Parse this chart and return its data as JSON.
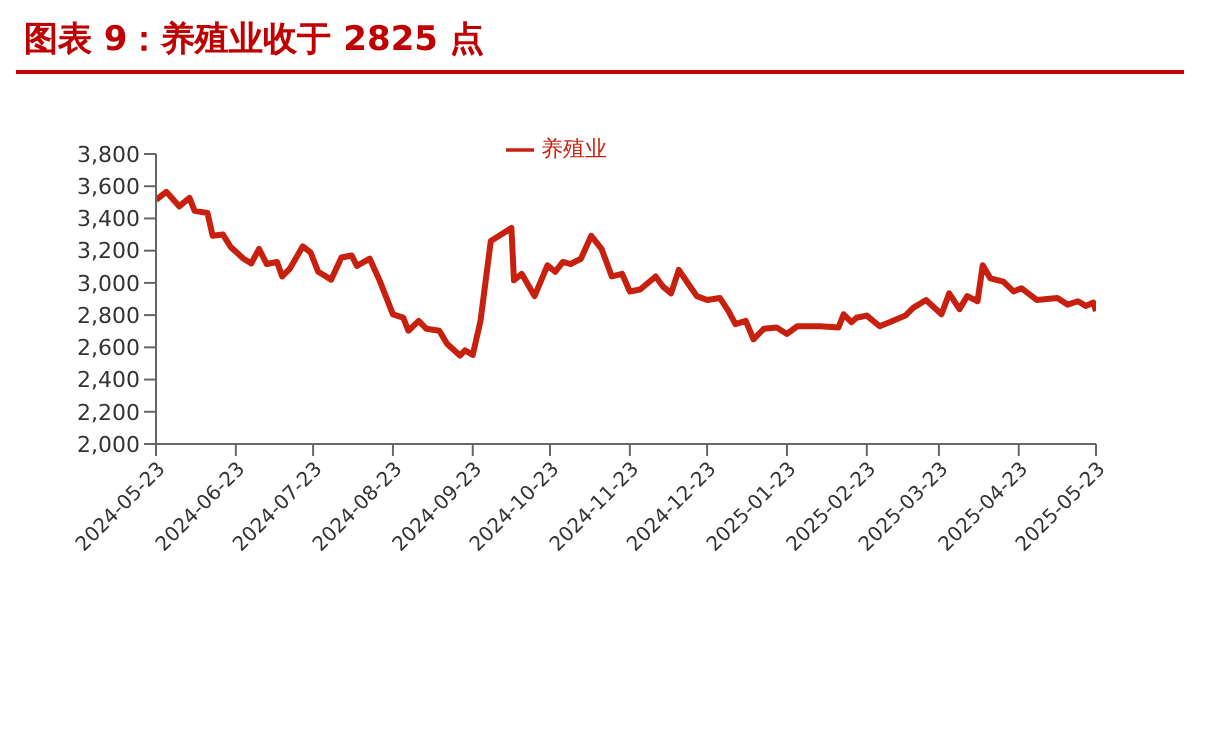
{
  "chart_data": {
    "type": "line",
    "title": "图表 9：养殖业收于 2825 点",
    "legend": "top",
    "grid": false,
    "marker": "none",
    "line_style": "solid",
    "xlim": [
      "2024-05-23",
      "2025-05-23"
    ],
    "xticks": [
      "2024-05-23",
      "2024-06-23",
      "2024-07-23",
      "2024-08-23",
      "2024-09-23",
      "2024-10-23",
      "2024-11-23",
      "2024-12-23",
      "2025-01-23",
      "2025-02-23",
      "2025-03-23",
      "2025-04-23",
      "2025-05-23"
    ],
    "ylim": [
      2000,
      3800
    ],
    "yticks": [
      {
        "value": 2000,
        "label": "2,000"
      },
      {
        "value": 2200,
        "label": "2,200"
      },
      {
        "value": 2400,
        "label": "2,400"
      },
      {
        "value": 2600,
        "label": "2,600"
      },
      {
        "value": 2800,
        "label": "2,800"
      },
      {
        "value": 3000,
        "label": "3,000"
      },
      {
        "value": 3200,
        "label": "3,200"
      },
      {
        "value": 3400,
        "label": "3,400"
      },
      {
        "value": 3600,
        "label": "3,600"
      },
      {
        "value": 3800,
        "label": "3,800"
      }
    ],
    "x": [
      "2024-05-23",
      "2024-05-27",
      "2024-06-01",
      "2024-06-05",
      "2024-06-07",
      "2024-06-12",
      "2024-06-14",
      "2024-06-18",
      "2024-06-21",
      "2024-06-26",
      "2024-06-29",
      "2024-07-02",
      "2024-07-05",
      "2024-07-09",
      "2024-07-11",
      "2024-07-14",
      "2024-07-19",
      "2024-07-22",
      "2024-07-25",
      "2024-07-30",
      "2024-08-03",
      "2024-08-07",
      "2024-08-09",
      "2024-08-14",
      "2024-08-18",
      "2024-08-23",
      "2024-08-27",
      "2024-08-29",
      "2024-09-02",
      "2024-09-05",
      "2024-09-10",
      "2024-09-13",
      "2024-09-18",
      "2024-09-20",
      "2024-09-23",
      "2024-09-26",
      "2024-09-30",
      "2024-10-08",
      "2024-10-09",
      "2024-10-12",
      "2024-10-17",
      "2024-10-22",
      "2024-10-25",
      "2024-10-28",
      "2024-10-31",
      "2024-11-04",
      "2024-11-08",
      "2024-11-12",
      "2024-11-16",
      "2024-11-20",
      "2024-11-23",
      "2024-11-27",
      "2024-12-03",
      "2024-12-06",
      "2024-12-09",
      "2024-12-12",
      "2024-12-16",
      "2024-12-19",
      "2024-12-23",
      "2024-12-28",
      "2024-12-31",
      "2025-01-03",
      "2025-01-07",
      "2025-01-10",
      "2025-01-14",
      "2025-01-19",
      "2025-01-23",
      "2025-01-27",
      "2025-02-05",
      "2025-02-12",
      "2025-02-14",
      "2025-02-17",
      "2025-02-19",
      "2025-02-23",
      "2025-02-28",
      "2025-03-05",
      "2025-03-10",
      "2025-03-13",
      "2025-03-18",
      "2025-03-24",
      "2025-03-27",
      "2025-03-31",
      "2025-04-03",
      "2025-04-07",
      "2025-04-09",
      "2025-04-12",
      "2025-04-17",
      "2025-04-21",
      "2025-04-24",
      "2025-04-30",
      "2025-05-08",
      "2025-05-12",
      "2025-05-16",
      "2025-05-19",
      "2025-05-22",
      "2025-05-23"
    ],
    "series": [
      {
        "name": "养殖业",
        "color": "#c8200e",
        "values": [
          3516,
          3565,
          3475,
          3528,
          3447,
          3434,
          3292,
          3300,
          3223,
          3150,
          3121,
          3211,
          3117,
          3130,
          3040,
          3089,
          3227,
          3190,
          3069,
          3020,
          3158,
          3170,
          3105,
          3150,
          3008,
          2805,
          2784,
          2703,
          2764,
          2715,
          2703,
          2622,
          2549,
          2581,
          2553,
          2764,
          3260,
          3341,
          3016,
          3056,
          2918,
          3109,
          3069,
          3130,
          3117,
          3150,
          3292,
          3211,
          3040,
          3056,
          2947,
          2959,
          3040,
          2975,
          2935,
          3081,
          2987,
          2918,
          2894,
          2906,
          2833,
          2744,
          2764,
          2650,
          2715,
          2723,
          2683,
          2731,
          2731,
          2723,
          2805,
          2756,
          2784,
          2797,
          2731,
          2764,
          2797,
          2845,
          2894,
          2805,
          2935,
          2837,
          2918,
          2886,
          3109,
          3028,
          3008,
          2947,
          2967,
          2894,
          2906,
          2865,
          2886,
          2857,
          2878,
          2825
        ]
      }
    ]
  }
}
